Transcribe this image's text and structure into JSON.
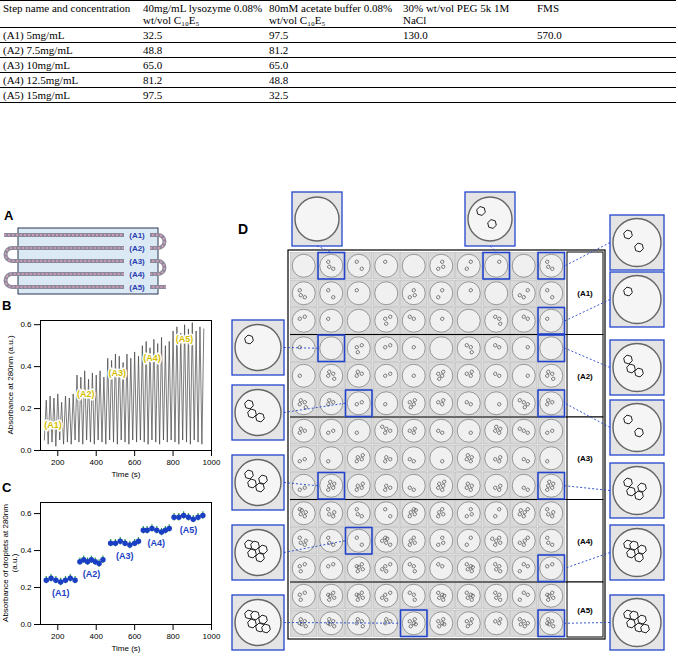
{
  "table": {
    "header": [
      "Step name and concentration",
      "40mg/mL lysozyme 0.08% wt/vol C₁₀E₅",
      "80mM acetate buffer 0.08% wt/vol C₁₀E₅",
      "30% wt/vol PEG 5k 1M NaCl",
      "FMS"
    ],
    "rows": [
      [
        "(A1) 5mg/mL",
        "32.5",
        "97.5",
        "130.0",
        "570.0"
      ],
      [
        "(A2) 7.5mg/mL",
        "48.8",
        "81.2",
        null,
        null
      ],
      [
        "(A3) 10mg/mL",
        "65.0",
        "65.0",
        null,
        null
      ],
      [
        "(A4) 12.5mg/mL",
        "81.2",
        "48.8",
        null,
        null
      ],
      [
        "(A5) 15mg/mL",
        "97.5",
        "32.5",
        null,
        null
      ]
    ]
  },
  "panel_A": {
    "letter": "A",
    "labels": [
      "(A1)",
      "(A2)",
      "(A3)",
      "(A4)",
      "(A5)"
    ]
  },
  "chart_data": [
    {
      "letter": "B",
      "type": "line",
      "x_label": "Time (s)",
      "y_label": "Absorbance at 280nm (a.u.)",
      "color": "#444444",
      "x": [
        130,
        140,
        150,
        160,
        170,
        180,
        190,
        200,
        210,
        220,
        230,
        240,
        250,
        260,
        270,
        280,
        290,
        300,
        310,
        320,
        330,
        340,
        350,
        360,
        370,
        380,
        390,
        400,
        410,
        420,
        430,
        440,
        450,
        460,
        470,
        480,
        490,
        500,
        510,
        520,
        530,
        540,
        550,
        560,
        570,
        580,
        590,
        600,
        610,
        620,
        630,
        640,
        650,
        660,
        670,
        680,
        690,
        700,
        710,
        720,
        730,
        740,
        750,
        760,
        770,
        780,
        790,
        800,
        810,
        820,
        830,
        840,
        850,
        860,
        870,
        880,
        890,
        900,
        910,
        920,
        930,
        940,
        950,
        960
      ],
      "values": [
        0.05,
        0.24,
        0.03,
        0.26,
        0.04,
        0.25,
        0.02,
        0.27,
        0.05,
        0.23,
        0.03,
        0.26,
        0.04,
        0.25,
        0.03,
        0.27,
        0.05,
        0.36,
        0.04,
        0.35,
        0.03,
        0.38,
        0.05,
        0.34,
        0.04,
        0.37,
        0.03,
        0.36,
        0.05,
        0.38,
        0.04,
        0.35,
        0.03,
        0.44,
        0.05,
        0.43,
        0.04,
        0.46,
        0.03,
        0.45,
        0.05,
        0.42,
        0.04,
        0.46,
        0.03,
        0.44,
        0.05,
        0.47,
        0.04,
        0.45,
        0.05,
        0.5,
        0.04,
        0.52,
        0.03,
        0.49,
        0.05,
        0.53,
        0.04,
        0.51,
        0.03,
        0.54,
        0.05,
        0.5,
        0.04,
        0.52,
        0.05,
        0.57,
        0.04,
        0.59,
        0.03,
        0.56,
        0.05,
        0.6,
        0.04,
        0.58,
        0.03,
        0.61,
        0.05,
        0.57,
        0.04,
        0.59,
        0.03,
        0.58
      ],
      "xlim": [
        110,
        1000
      ],
      "xticks": [
        200,
        400,
        600,
        800,
        1000
      ],
      "ylim": [
        0,
        0.62
      ],
      "yticks": [
        {
          "value": 0,
          "label": "0.0"
        },
        0.2,
        0.4,
        0.6
      ],
      "annotations": [
        {
          "text": "(A1)",
          "x": 175,
          "y": 0.12
        },
        {
          "text": "(A2)",
          "x": 345,
          "y": 0.27
        },
        {
          "text": "(A3)",
          "x": 510,
          "y": 0.37
        },
        {
          "text": "(A4)",
          "x": 690,
          "y": 0.44
        },
        {
          "text": "(A5)",
          "x": 860,
          "y": 0.53
        }
      ]
    },
    {
      "letter": "C",
      "type": "scatter",
      "x_label": "Time (s)",
      "y_label": "Absorbance of droplets at 280nm (a.u.)",
      "color": "#1a3fc4",
      "x": [
        140,
        165,
        190,
        215,
        240,
        265,
        290,
        315,
        335,
        355,
        375,
        395,
        415,
        435,
        475,
        500,
        525,
        550,
        575,
        600,
        620,
        645,
        665,
        690,
        715,
        740,
        760,
        780,
        805,
        830,
        855,
        880,
        905,
        930,
        955
      ],
      "values": [
        0.24,
        0.25,
        0.24,
        0.23,
        0.24,
        0.25,
        0.24,
        0.34,
        0.35,
        0.34,
        0.35,
        0.34,
        0.33,
        0.35,
        0.44,
        0.44,
        0.45,
        0.44,
        0.43,
        0.44,
        0.45,
        0.51,
        0.51,
        0.52,
        0.51,
        0.5,
        0.51,
        0.52,
        0.58,
        0.58,
        0.59,
        0.58,
        0.57,
        0.58,
        0.59
      ],
      "errors": [
        0.02,
        0.02,
        0.02,
        0.02,
        0.02,
        0.02,
        0.02,
        0.02,
        0.02,
        0.02,
        0.02,
        0.02,
        0.02,
        0.02,
        0.02,
        0.02,
        0.02,
        0.02,
        0.02,
        0.02,
        0.02,
        0.02,
        0.02,
        0.02,
        0.02,
        0.02,
        0.02,
        0.02,
        0.02,
        0.02,
        0.02,
        0.02,
        0.02,
        0.02,
        0.02
      ],
      "xlim": [
        110,
        1000
      ],
      "xticks": [
        200,
        400,
        600,
        800,
        1000
      ],
      "ylim": [
        0,
        0.66
      ],
      "yticks": [
        {
          "value": 0,
          "label": "0.0"
        },
        0.2,
        0.4,
        0.6
      ],
      "annotations": [
        {
          "text": "(A1)",
          "x": 215,
          "y": 0.17
        },
        {
          "text": "(A2)",
          "x": 375,
          "y": 0.27
        },
        {
          "text": "(A3)",
          "x": 548,
          "y": 0.37
        },
        {
          "text": "(A4)",
          "x": 712,
          "y": 0.44
        },
        {
          "text": "(A5)",
          "x": 880,
          "y": 0.51
        }
      ]
    }
  ],
  "panel_D": {
    "letter": "D",
    "groups": [
      "(A1)",
      "(A2)",
      "(A3)",
      "(A4)",
      "(A5)"
    ]
  }
}
